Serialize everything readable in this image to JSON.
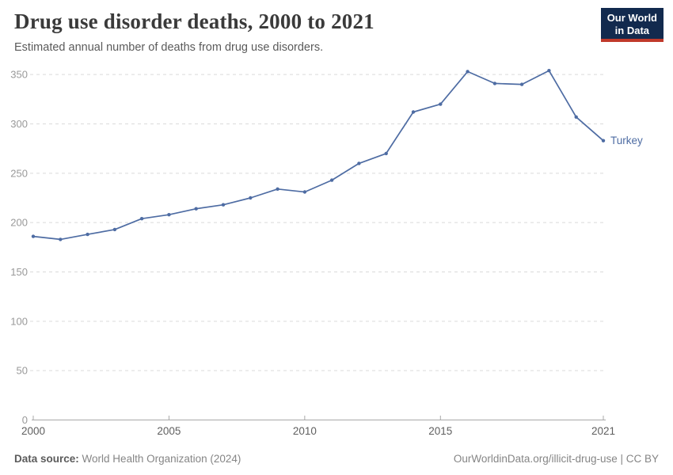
{
  "header": {
    "title": "Drug use disorder deaths, 2000 to 2021",
    "subtitle": "Estimated annual number of deaths from drug use disorders.",
    "logo": {
      "line1": "Our World",
      "line2": "in Data"
    }
  },
  "colors": {
    "series_blue": "#4e6ca3",
    "grid": "#dadada",
    "axis": "#a8a8a8",
    "y_tick_label": "#999999",
    "x_tick_label": "#5f5f5f",
    "logo_bg": "#122a4e",
    "logo_accent": "#c0392b"
  },
  "chart_data": {
    "type": "line",
    "title": "Drug use disorder deaths, 2000 to 2021",
    "subtitle": "Estimated annual number of deaths from drug use disorders.",
    "xlabel": "",
    "ylabel": "",
    "grid": "horizontal-dashed",
    "legend_position": "end-of-line-label",
    "ylim": [
      0,
      350
    ],
    "yticks": [
      0,
      50,
      100,
      150,
      200,
      250,
      300,
      350
    ],
    "xticks": [
      2000,
      2005,
      2010,
      2015,
      2021
    ],
    "x": [
      2000,
      2001,
      2002,
      2003,
      2004,
      2005,
      2006,
      2007,
      2008,
      2009,
      2010,
      2011,
      2012,
      2013,
      2014,
      2015,
      2016,
      2017,
      2018,
      2019,
      2020,
      2021
    ],
    "series": [
      {
        "name": "Turkey",
        "color": "#4e6ca3",
        "values": [
          186,
          183,
          188,
          193,
          204,
          208,
          214,
          218,
          225,
          234,
          231,
          243,
          260,
          270,
          312,
          320,
          353,
          341,
          340,
          354,
          307,
          283
        ]
      }
    ]
  },
  "footer": {
    "source_label": "Data source:",
    "source_value": "World Health Organization (2024)",
    "link": "OurWorldinData.org/illicit-drug-use | CC BY"
  }
}
